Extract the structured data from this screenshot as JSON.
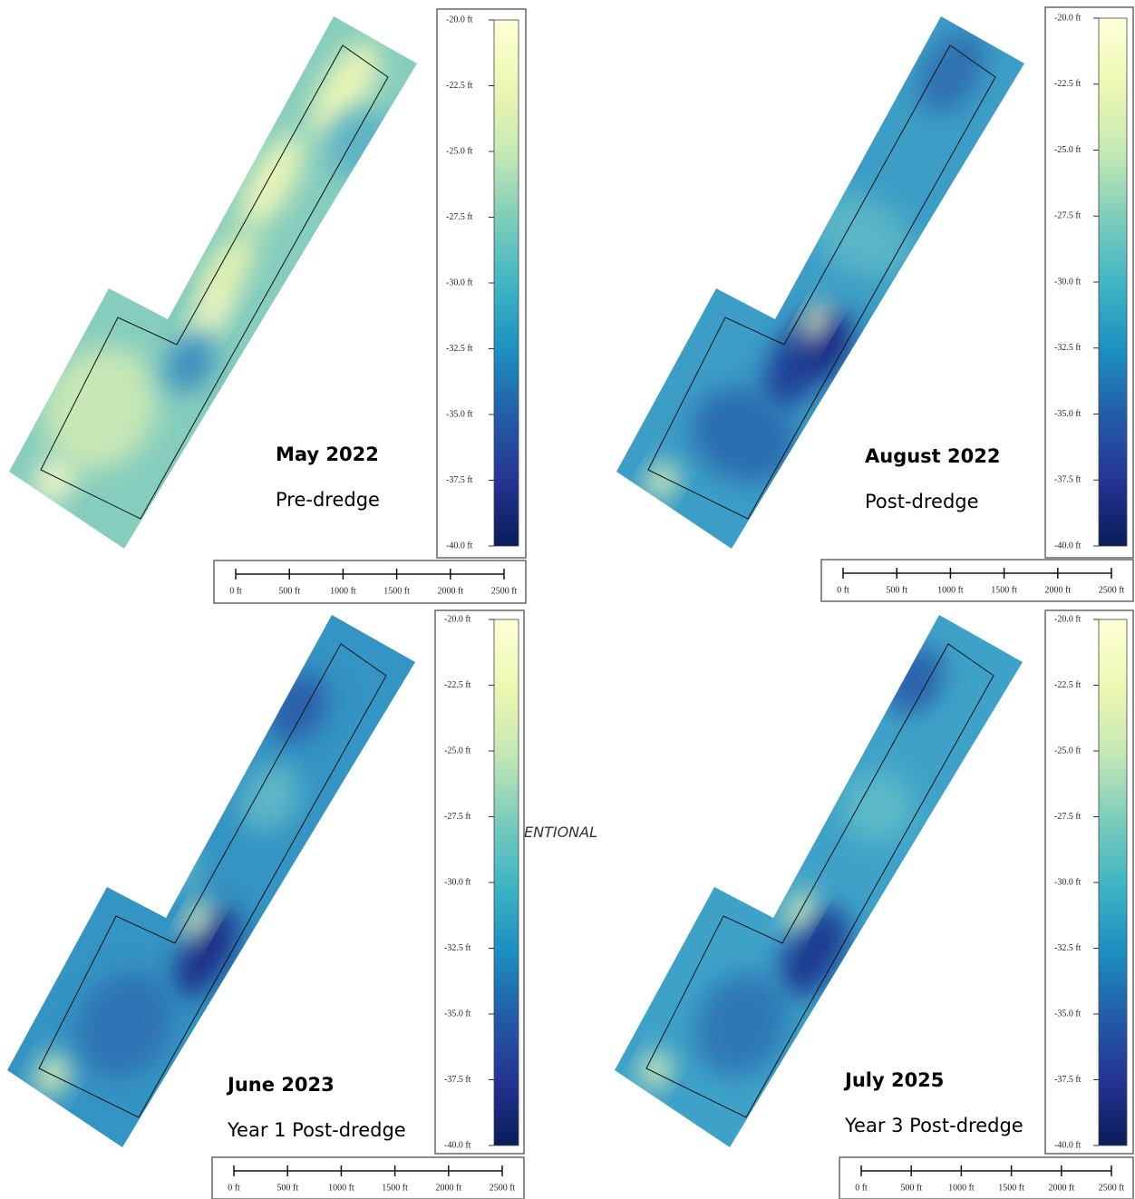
{
  "panels": [
    {
      "title": "May 2022",
      "subtitle": "Pre-dredge",
      "colorbar_ticks": [
        "-20.0 ft",
        "-22.5 ft",
        "-25.0 ft",
        "-27.5 ft",
        "-30.0 ft",
        "-32.5 ft",
        "-35.0 ft",
        "-37.5 ft",
        "-40.0 ft"
      ],
      "scale_labels": [
        "0 ft",
        "500 ft",
        "1000 ft",
        "1500 ft",
        "2000 ft",
        "2500 ft"
      ]
    },
    {
      "title": "August 2022",
      "subtitle": "Post-dredge",
      "colorbar_ticks": [
        "-20.0 ft",
        "-22.5 ft",
        "-25.0 ft",
        "-27.5 ft",
        "-30.0 ft",
        "-32.5 ft",
        "-35.0 ft",
        "-37.5 ft",
        "-40.0 ft"
      ],
      "scale_labels": [
        "0 ft",
        "500 ft",
        "1000 ft",
        "1500 ft",
        "2000 ft",
        "2500 ft"
      ]
    },
    {
      "title": "June 2023",
      "subtitle": "Year 1 Post-dredge",
      "colorbar_ticks": [
        "-20.0 ft",
        "-22.5 ft",
        "-25.0 ft",
        "-27.5 ft",
        "-30.0 ft",
        "-32.5 ft",
        "-35.0 ft",
        "-37.5 ft",
        "-40.0 ft"
      ],
      "scale_labels": [
        "0 ft",
        "500 ft",
        "1000 ft",
        "1500 ft",
        "2000 ft",
        "2500 ft"
      ]
    },
    {
      "title": "July 2025",
      "subtitle": "Year 3 Post-dredge",
      "colorbar_ticks": [
        "-20.0 ft",
        "-22.5 ft",
        "-25.0 ft",
        "-27.5 ft",
        "-30.0 ft",
        "-32.5 ft",
        "-35.0 ft",
        "-37.5 ft",
        "-40.0 ft"
      ],
      "scale_labels": [
        "0 ft",
        "500 ft",
        "1000 ft",
        "1500 ft",
        "2000 ft",
        "2500 ft"
      ]
    }
  ],
  "overlay_text": "ENTIONAL"
}
